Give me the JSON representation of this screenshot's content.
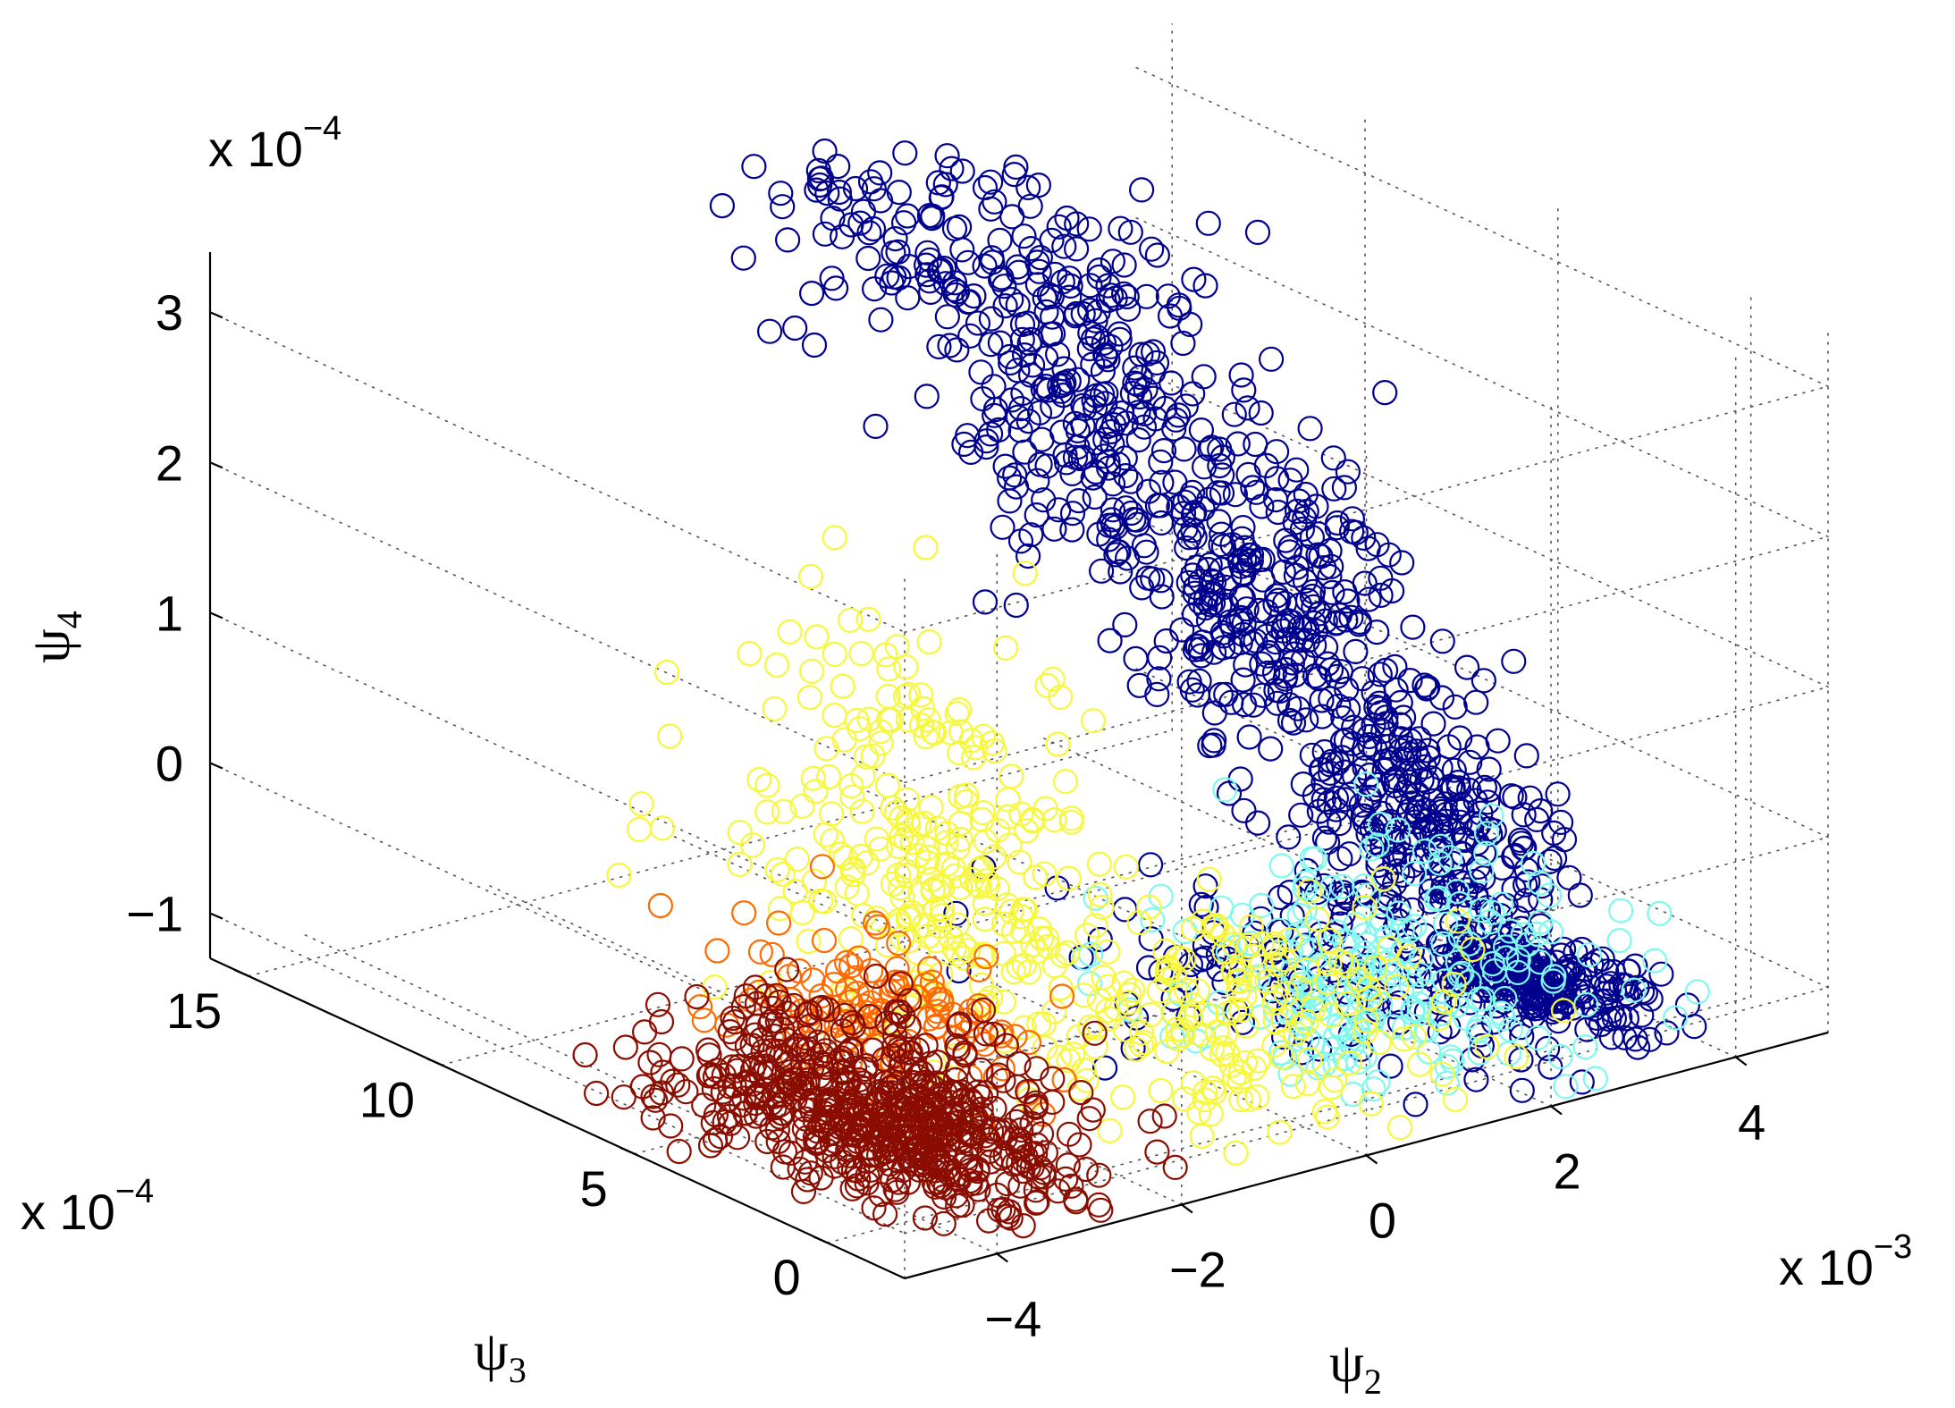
{
  "chart_data": {
    "type": "scatter3d",
    "title": "",
    "axes": {
      "x": {
        "label": "ψ",
        "label_sub": "2",
        "ticks": [
          -4,
          -2,
          0,
          2,
          4
        ],
        "tick_labels": [
          "−4",
          "−2",
          "0",
          "2",
          "4"
        ],
        "multiplier": "x 10",
        "multiplier_exp": "−3",
        "range": [
          -5,
          5
        ]
      },
      "y": {
        "label": "ψ",
        "label_sub": "3",
        "ticks": [
          0,
          5,
          10,
          15
        ],
        "tick_labels": [
          "0",
          "5",
          "10",
          "15"
        ],
        "multiplier": "x 10",
        "multiplier_exp": "−4",
        "range": [
          -2,
          16
        ]
      },
      "z": {
        "label": "ψ",
        "label_sub": "4",
        "ticks": [
          -1,
          0,
          1,
          2,
          3
        ],
        "tick_labels": [
          "−1",
          "0",
          "1",
          "2",
          "3"
        ],
        "multiplier": "x 10",
        "multiplier_exp": "−4",
        "range": [
          -1.3,
          3.4
        ]
      }
    },
    "grid": true,
    "marker": "open-circle",
    "colormap": "jet",
    "series": [
      {
        "color": "#00008f",
        "clusters": [
          {
            "x": 3.6,
            "y": 2.0,
            "z": -1.2,
            "sx": 0.35,
            "sy": 1.2,
            "sz": 0.08,
            "n": 220
          },
          {
            "x": 3.2,
            "y": 4.0,
            "z": -0.3,
            "sx": 0.35,
            "sy": 1.5,
            "sz": 0.4,
            "n": 260
          },
          {
            "x": 2.6,
            "y": 7.0,
            "z": 0.9,
            "sx": 0.4,
            "sy": 1.5,
            "sz": 0.55,
            "n": 280
          },
          {
            "x": 1.8,
            "y": 10.0,
            "z": 2.2,
            "sx": 0.5,
            "sy": 1.8,
            "sz": 0.6,
            "n": 260
          },
          {
            "x": 0.8,
            "y": 12.0,
            "z": 3.0,
            "sx": 0.7,
            "sy": 1.5,
            "sz": 0.35,
            "n": 90
          },
          {
            "x": 1.6,
            "y": 3.0,
            "z": -0.9,
            "sx": 0.8,
            "sy": 2.5,
            "sz": 0.3,
            "n": 120
          }
        ]
      },
      {
        "color": "#7ff8ee",
        "clusters": [
          {
            "x": 1.8,
            "y": 2.5,
            "z": -1.0,
            "sx": 1.0,
            "sy": 2.0,
            "sz": 0.18,
            "n": 160
          },
          {
            "x": 2.8,
            "y": 3.0,
            "z": -0.7,
            "sx": 0.6,
            "sy": 2.0,
            "sz": 0.35,
            "n": 60
          }
        ]
      },
      {
        "color": "#f7f73d",
        "clusters": [
          {
            "x": 0.5,
            "y": 3.0,
            "z": -1.0,
            "sx": 1.1,
            "sy": 2.2,
            "sz": 0.2,
            "n": 180
          },
          {
            "x": -1.4,
            "y": 6.0,
            "z": -0.3,
            "sx": 0.6,
            "sy": 2.0,
            "sz": 0.35,
            "n": 170
          },
          {
            "x": -0.6,
            "y": 8.0,
            "z": 0.4,
            "sx": 0.5,
            "sy": 2.0,
            "sz": 0.5,
            "n": 90
          }
        ]
      },
      {
        "color": "#ff6a00",
        "clusters": [
          {
            "x": -2.0,
            "y": 5.5,
            "z": -0.9,
            "sx": 0.5,
            "sy": 2.0,
            "sz": 0.18,
            "n": 120
          }
        ]
      },
      {
        "color": "#8a0d00",
        "clusters": [
          {
            "x": -3.2,
            "y": 3.0,
            "z": -1.15,
            "sx": 0.6,
            "sy": 2.2,
            "sz": 0.1,
            "n": 520
          },
          {
            "x": -2.4,
            "y": 4.5,
            "z": -0.95,
            "sx": 0.5,
            "sy": 1.8,
            "sz": 0.12,
            "n": 90
          }
        ]
      }
    ]
  }
}
